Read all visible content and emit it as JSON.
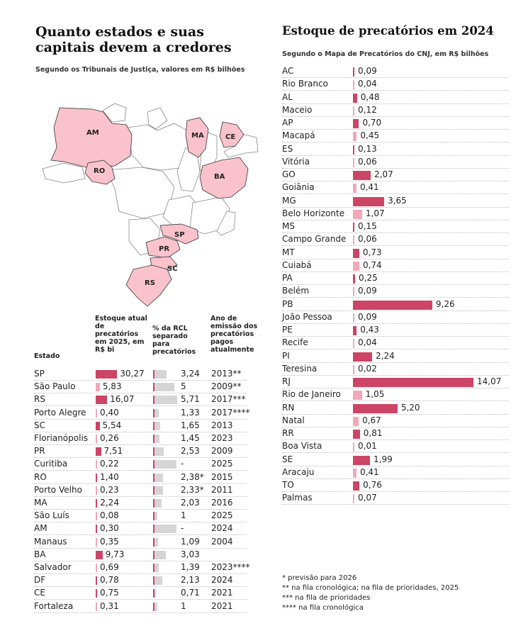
{
  "left_panel": {
    "title": "Quanto estados e suas capitais devem a credores",
    "subtitle": "Segundo os Tribunais de Justiça, valores em R$ bilhões",
    "map_labels": [
      "AM",
      "MA",
      "CE",
      "RO",
      "BA",
      "SP",
      "PR",
      "SC",
      "RS"
    ],
    "headers": {
      "estado": "Estado",
      "estoque": "Estoque atual de precatórios em 2025, em R$ bi",
      "rcl": "% da RCL separado para precatórios",
      "ano": "Ano de emissão dos precatórios pagos atualmente"
    }
  },
  "right_panel": {
    "title": "Estoque de precatórios em 2024",
    "subtitle": "Segundo o Mapa de Precatórios do CNJ, em R$ bilhões"
  },
  "colors": {
    "state": "#cc4466",
    "capital": "#f1a8b8",
    "rcl_bar": "#d5d5d5",
    "map_fill": "#f9c2cc"
  },
  "chart_data": [
    {
      "type": "table",
      "title": "Quanto estados e suas capitais devem a credores",
      "subtitle": "Segundo os Tribunais de Justiça, valores em R$ bilhões",
      "columns": [
        "Estado",
        "Estoque atual de precatórios em 2025, em R$ bi",
        "% da RCL separado para precatórios",
        "Ano de emissão dos precatórios pagos atualmente"
      ],
      "rows": [
        {
          "name": "SP",
          "kind": "state",
          "stock": 30.27,
          "stock_label": "30,27",
          "rcl": 3.24,
          "rcl_label": "3,24",
          "year": "2013**"
        },
        {
          "name": "São Paulo",
          "kind": "capital",
          "stock": 5.83,
          "stock_label": "5,83",
          "rcl": 5,
          "rcl_label": "5",
          "year": "2009**"
        },
        {
          "name": "RS",
          "kind": "state",
          "stock": 16.07,
          "stock_label": "16,07",
          "rcl": 5.71,
          "rcl_label": "5,71",
          "year": "2017***"
        },
        {
          "name": "Porto Alegre",
          "kind": "capital",
          "stock": 0.4,
          "stock_label": "0,40",
          "rcl": 1.33,
          "rcl_label": "1,33",
          "year": "2017****"
        },
        {
          "name": "SC",
          "kind": "state",
          "stock": 5.54,
          "stock_label": "5,54",
          "rcl": 1.65,
          "rcl_label": "1,65",
          "year": "2013"
        },
        {
          "name": "Florianópolis",
          "kind": "capital",
          "stock": 0.26,
          "stock_label": "0,26",
          "rcl": 1.45,
          "rcl_label": "1,45",
          "year": "2023"
        },
        {
          "name": "PR",
          "kind": "state",
          "stock": 7.51,
          "stock_label": "7,51",
          "rcl": 2.53,
          "rcl_label": "2,53",
          "year": "2009"
        },
        {
          "name": "Curitiba",
          "kind": "capital",
          "stock": 0.22,
          "stock_label": "0,22",
          "rcl": null,
          "rcl_label": "-",
          "year": "2025"
        },
        {
          "name": "RO",
          "kind": "state",
          "stock": 1.4,
          "stock_label": "1,40",
          "rcl": 2.38,
          "rcl_label": "2,38*",
          "year": "2015"
        },
        {
          "name": "Porto Velho",
          "kind": "capital",
          "stock": 0.23,
          "stock_label": "0,23",
          "rcl": 2.33,
          "rcl_label": "2,33*",
          "year": "2011"
        },
        {
          "name": "MA",
          "kind": "state",
          "stock": 2.24,
          "stock_label": "2,24",
          "rcl": 2.03,
          "rcl_label": "2,03",
          "year": "2016"
        },
        {
          "name": "São Luís",
          "kind": "capital",
          "stock": 0.08,
          "stock_label": "0,08",
          "rcl": 1,
          "rcl_label": "1",
          "year": "2025"
        },
        {
          "name": "AM",
          "kind": "state",
          "stock": 0.3,
          "stock_label": "0,30",
          "rcl": null,
          "rcl_label": "-",
          "year": "2024"
        },
        {
          "name": "Manaus",
          "kind": "capital",
          "stock": 0.35,
          "stock_label": "0,35",
          "rcl": 1.09,
          "rcl_label": "1,09",
          "year": "2004"
        },
        {
          "name": "BA",
          "kind": "state",
          "stock": 9.73,
          "stock_label": "9,73",
          "rcl": 3.03,
          "rcl_label": "3,03",
          "year": ""
        },
        {
          "name": "Salvador",
          "kind": "capital",
          "stock": 0.69,
          "stock_label": "0,69",
          "rcl": 1.39,
          "rcl_label": "1,39",
          "year": "2023****"
        },
        {
          "name": "DF",
          "kind": "state",
          "stock": 0.78,
          "stock_label": "0,78",
          "rcl": 2.13,
          "rcl_label": "2,13",
          "year": "2024"
        },
        {
          "name": "CE",
          "kind": "state",
          "stock": 0.75,
          "stock_label": "0,75",
          "rcl": 0.71,
          "rcl_label": "0,71",
          "year": "2021"
        },
        {
          "name": "Fortaleza",
          "kind": "capital",
          "stock": 0.31,
          "stock_label": "0,31",
          "rcl": 1,
          "rcl_label": "1",
          "year": "2021"
        }
      ]
    },
    {
      "type": "bar",
      "title": "Estoque de precatórios em 2024",
      "subtitle": "Segundo o Mapa de Precatórios do CNJ, em R$ bilhões",
      "categories": [
        "AC",
        "Rio Branco",
        "AL",
        "Maceio",
        "AP",
        "Macapá",
        "ES",
        "Vitória",
        "GO",
        "Goiânia",
        "MG",
        "Belo Horizonte",
        "MS",
        "Campo Grande",
        "MT",
        "Cuiabá",
        "PA",
        "Belém",
        "PB",
        "João Pessoa",
        "PE",
        "Recife",
        "PI",
        "Teresina",
        "RJ",
        "Rio de Janeiro",
        "RN",
        "Natal",
        "RR",
        "Boa Vista",
        "SE",
        "Aracaju",
        "TO",
        "Palmas"
      ],
      "kinds": [
        "state",
        "capital",
        "state",
        "capital",
        "state",
        "capital",
        "state",
        "capital",
        "state",
        "capital",
        "state",
        "capital",
        "state",
        "capital",
        "state",
        "capital",
        "state",
        "capital",
        "state",
        "capital",
        "state",
        "capital",
        "state",
        "capital",
        "state",
        "capital",
        "state",
        "capital",
        "state",
        "capital",
        "state",
        "capital",
        "state",
        "capital"
      ],
      "values": [
        0.09,
        0.04,
        0.48,
        0.12,
        0.7,
        0.45,
        0.13,
        0.06,
        2.07,
        0.41,
        3.65,
        1.07,
        0.15,
        0.06,
        0.73,
        0.74,
        0.25,
        0.09,
        9.26,
        0.09,
        0.43,
        0.04,
        2.24,
        0.02,
        14.07,
        1.05,
        5.2,
        0.67,
        0.81,
        0.01,
        1.99,
        0.41,
        0.76,
        0.07
      ],
      "value_labels": [
        "0,09",
        "0,04",
        "0,48",
        "0,12",
        "0,70",
        "0,45",
        "0,13",
        "0,06",
        "2,07",
        "0,41",
        "3,65",
        "1,07",
        "0,15",
        "0,06",
        "0,73",
        "0,74",
        "0,25",
        "0,09",
        "9,26",
        "0,09",
        "0,43",
        "0,04",
        "2,24",
        "0,02",
        "14,07",
        "1,05",
        "5,20",
        "0,67",
        "0,81",
        "0,01",
        "1,99",
        "0,41",
        "0,76",
        "0,07"
      ]
    }
  ],
  "notes": [
    "* previsão para 2026",
    "** na fila cronológica; na fila de prioridades, 2025",
    "*** na fila de prioridades",
    "**** na fila cronológica"
  ]
}
